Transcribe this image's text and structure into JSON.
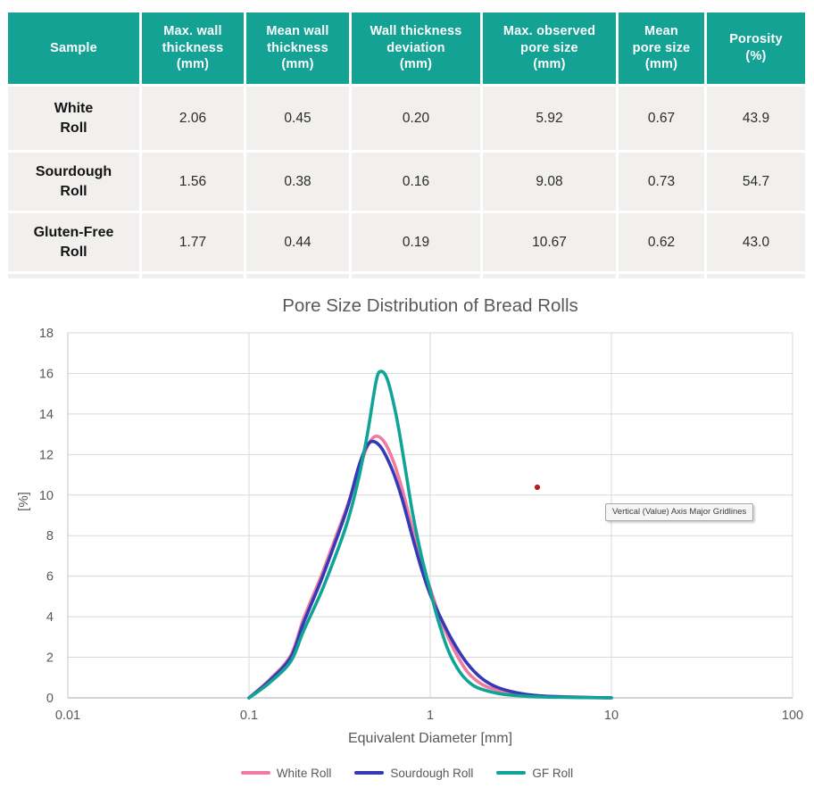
{
  "table": {
    "header_bg": "#14A294",
    "row_bg": "#F1F0EE",
    "columns": [
      "Sample",
      "Max. wall\nthickness\n(mm)",
      "Mean wall\nthickness\n(mm)",
      "Wall thickness\ndeviation\n(mm)",
      "Max. observed\npore size\n(mm)",
      "Mean\npore size\n(mm)",
      "Porosity\n(%)"
    ],
    "rows": [
      {
        "sample": "White\nRoll",
        "values": [
          "2.06",
          "0.45",
          "0.20",
          "5.92",
          "0.67",
          "43.9"
        ]
      },
      {
        "sample": "Sourdough\nRoll",
        "values": [
          "1.56",
          "0.38",
          "0.16",
          "9.08",
          "0.73",
          "54.7"
        ]
      },
      {
        "sample": "Gluten-Free\nRoll",
        "values": [
          "1.77",
          "0.44",
          "0.19",
          "10.67",
          "0.62",
          "43.0"
        ]
      }
    ]
  },
  "chart_data": {
    "type": "line",
    "title": "Pore Size Distribution of Bread Rolls",
    "xlabel": "Equivalent Diameter [mm]",
    "ylabel": "[%]",
    "x_scale": "log",
    "xlim": [
      0.01,
      100
    ],
    "ylim": [
      0,
      18
    ],
    "x_ticks": [
      0.01,
      0.1,
      1,
      10,
      100
    ],
    "x_tick_labels": [
      "0.01",
      "0.1",
      "1",
      "10",
      "100"
    ],
    "y_ticks": [
      0,
      2,
      4,
      6,
      8,
      10,
      12,
      14,
      16,
      18
    ],
    "grid": true,
    "grid_color": "#D9D9D9",
    "axis_color": "#C6C6C6",
    "text_color": "#595959",
    "legend_position": "bottom",
    "series": [
      {
        "name": "White Roll",
        "color": "#F17BA0",
        "points": [
          [
            0.1,
            0
          ],
          [
            0.13,
            0.9
          ],
          [
            0.17,
            2.1
          ],
          [
            0.2,
            3.9
          ],
          [
            0.25,
            6.0
          ],
          [
            0.3,
            7.9
          ],
          [
            0.35,
            9.5
          ],
          [
            0.4,
            11.1
          ],
          [
            0.45,
            12.4
          ],
          [
            0.5,
            12.9
          ],
          [
            0.56,
            12.6
          ],
          [
            0.63,
            11.6
          ],
          [
            0.7,
            10.3
          ],
          [
            0.8,
            8.3
          ],
          [
            0.9,
            6.6
          ],
          [
            1.0,
            5.4
          ],
          [
            1.15,
            3.8
          ],
          [
            1.35,
            2.4
          ],
          [
            1.6,
            1.3
          ],
          [
            1.9,
            0.7
          ],
          [
            2.3,
            0.4
          ],
          [
            3,
            0.18
          ],
          [
            4,
            0.08
          ],
          [
            6,
            0.03
          ],
          [
            10,
            0
          ]
        ]
      },
      {
        "name": "Sourdough Roll",
        "color": "#3639B6",
        "points": [
          [
            0.1,
            0
          ],
          [
            0.13,
            0.85
          ],
          [
            0.17,
            2.0
          ],
          [
            0.2,
            3.7
          ],
          [
            0.25,
            5.8
          ],
          [
            0.3,
            7.7
          ],
          [
            0.35,
            9.4
          ],
          [
            0.4,
            11.3
          ],
          [
            0.44,
            12.3
          ],
          [
            0.48,
            12.65
          ],
          [
            0.54,
            12.3
          ],
          [
            0.62,
            11.2
          ],
          [
            0.7,
            9.8
          ],
          [
            0.8,
            7.9
          ],
          [
            0.9,
            6.3
          ],
          [
            1.0,
            5.1
          ],
          [
            1.15,
            3.9
          ],
          [
            1.35,
            2.7
          ],
          [
            1.6,
            1.7
          ],
          [
            1.9,
            1.0
          ],
          [
            2.3,
            0.55
          ],
          [
            3,
            0.25
          ],
          [
            4,
            0.1
          ],
          [
            6,
            0.04
          ],
          [
            10,
            0
          ]
        ]
      },
      {
        "name": "GF Roll",
        "color": "#10A496",
        "points": [
          [
            0.1,
            0
          ],
          [
            0.13,
            0.75
          ],
          [
            0.17,
            1.8
          ],
          [
            0.2,
            3.3
          ],
          [
            0.25,
            5.2
          ],
          [
            0.3,
            7.0
          ],
          [
            0.35,
            8.7
          ],
          [
            0.4,
            10.7
          ],
          [
            0.45,
            13.0
          ],
          [
            0.5,
            15.5
          ],
          [
            0.53,
            16.1
          ],
          [
            0.58,
            15.7
          ],
          [
            0.65,
            13.9
          ],
          [
            0.72,
            11.6
          ],
          [
            0.8,
            9.1
          ],
          [
            0.9,
            6.9
          ],
          [
            1.0,
            5.3
          ],
          [
            1.1,
            3.9
          ],
          [
            1.25,
            2.4
          ],
          [
            1.45,
            1.3
          ],
          [
            1.7,
            0.65
          ],
          [
            2.0,
            0.38
          ],
          [
            2.5,
            0.18
          ],
          [
            3.5,
            0.07
          ],
          [
            5,
            0.03
          ],
          [
            10,
            0
          ]
        ]
      }
    ],
    "annotations": {
      "tooltip_text": "Vertical (Value) Axis Major Gridlines",
      "cursor_dot": {
        "x": 3.9,
        "y": 10.4
      }
    }
  }
}
